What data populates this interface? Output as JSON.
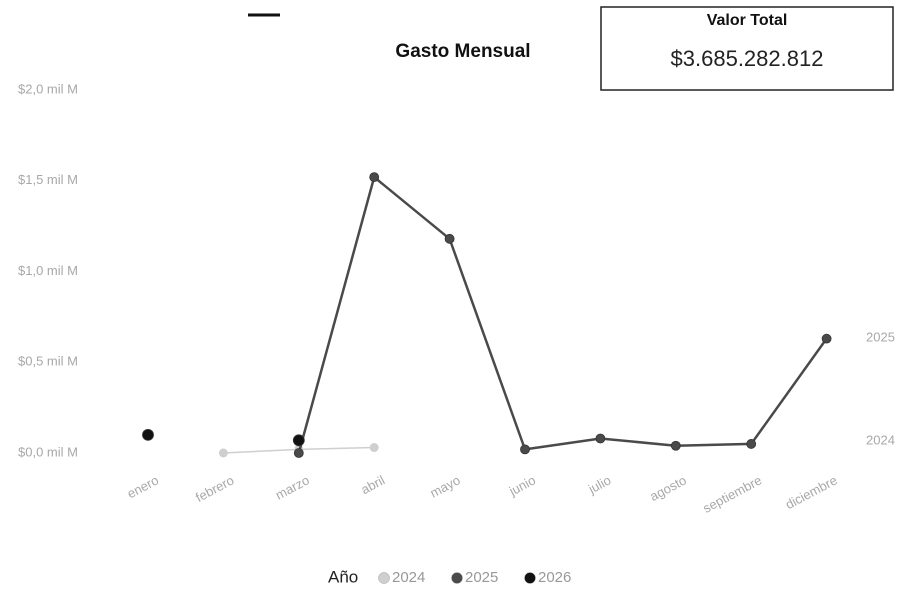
{
  "chart_data": {
    "type": "line",
    "title": "Gasto Mensual",
    "categories": [
      "enero",
      "febrero",
      "marzo",
      "abril",
      "mayo",
      "junio",
      "julio",
      "agosto",
      "septiembre",
      "diciembre"
    ],
    "series": [
      {
        "name": "2024",
        "color": "#cfcfcf",
        "values": [
          null,
          0.0,
          0.02,
          0.03,
          null,
          null,
          null,
          null,
          null,
          null
        ]
      },
      {
        "name": "2025",
        "color": "#4a4a4a",
        "values": [
          null,
          null,
          0.0,
          1.52,
          1.18,
          0.02,
          0.08,
          0.04,
          0.05,
          0.63
        ]
      },
      {
        "name": "2026",
        "color": "#111111",
        "values": [
          0.1,
          null,
          0.07,
          null,
          null,
          null,
          null,
          null,
          null,
          null
        ]
      }
    ],
    "ylim": [
      0,
      2.0
    ],
    "yticks": [
      {
        "value": 0,
        "label": "$0,0 mil M"
      },
      {
        "value": 0.5,
        "label": "$0,5 mil M"
      },
      {
        "value": 1.0,
        "label": "$1,0 mil M"
      },
      {
        "value": 1.5,
        "label": "$1,5 mil M"
      },
      {
        "value": 2.0,
        "label": "$2,0 mil M"
      }
    ],
    "grid": false,
    "legend_title": "Año",
    "legend_position": "bottom"
  },
  "card": {
    "title": "Valor Total",
    "value": "$3.685.282.812"
  }
}
